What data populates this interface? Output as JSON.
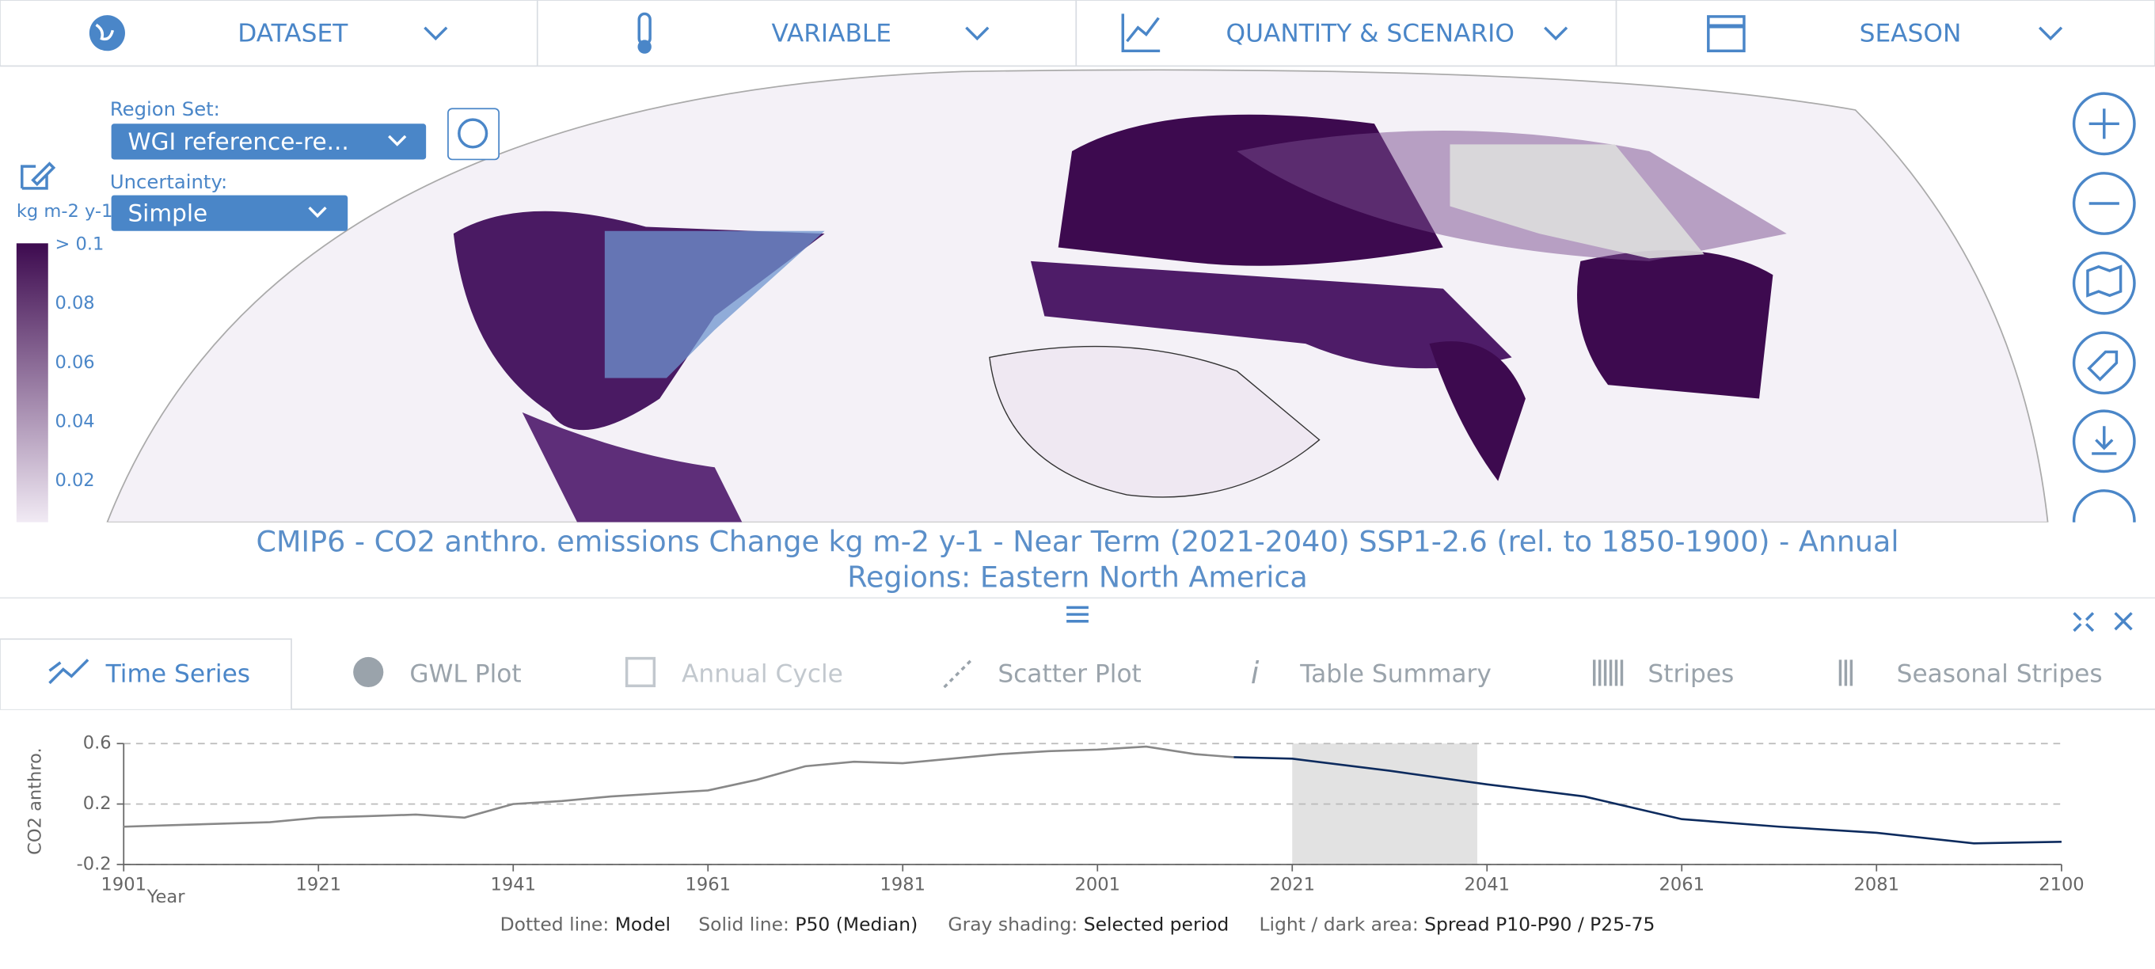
{
  "toolbar": {
    "items": [
      "DATASET",
      "VARIABLE",
      "QUANTITY & SCENARIO",
      "SEASON"
    ]
  },
  "map": {
    "region_set_label": "Region Set:",
    "region_set_value": "WGI reference-re...",
    "uncertainty_label": "Uncertainty:",
    "uncertainty_value": "Simple",
    "unit": "kg m-2 y-1",
    "colorbar_labels": [
      "> 0.1",
      "0.08",
      "0.06",
      "0.04",
      "0.02"
    ]
  },
  "title": {
    "line1": "CMIP6 - CO2 anthro. emissions Change kg m-2 y-1 - Near Term (2021-2040) SSP1-2.6 (rel. to 1850-1900) - Annual",
    "line2": "Regions: Eastern North America"
  },
  "tabs": [
    "Time Series",
    "GWL Plot",
    "Annual Cycle",
    "Scatter Plot",
    "Table Summary",
    "Stripes",
    "Seasonal Stripes"
  ],
  "chart_data": {
    "type": "line",
    "x_label": "Year",
    "y_label": "CO2 anthro.",
    "xlim": [
      1901,
      2100
    ],
    "xticks": [
      1901,
      1921,
      1941,
      1961,
      1981,
      2001,
      2021,
      2041,
      2061,
      2081,
      2100
    ],
    "ylim": [
      -0.2,
      0.6
    ],
    "yticks": [
      -0.2,
      0.2,
      0.6
    ],
    "grid": true,
    "shaded_period": [
      2021,
      2040
    ],
    "series": [
      {
        "color": "#888888",
        "x": [
          1901,
          1906,
          1911,
          1916,
          1921,
          1926,
          1931,
          1936,
          1941,
          1946,
          1951,
          1956,
          1961,
          1966,
          1971,
          1976,
          1981,
          1986,
          1991,
          1996,
          2001,
          2006,
          2011,
          2015
        ],
        "values": [
          0.05,
          0.06,
          0.07,
          0.08,
          0.11,
          0.12,
          0.13,
          0.11,
          0.2,
          0.22,
          0.25,
          0.27,
          0.29,
          0.36,
          0.45,
          0.48,
          0.47,
          0.5,
          0.53,
          0.55,
          0.56,
          0.58,
          0.53,
          0.51
        ]
      },
      {
        "color": "#0d2b5e",
        "x": [
          2015,
          2021,
          2031,
          2041,
          2051,
          2061,
          2071,
          2081,
          2091,
          2100
        ],
        "values": [
          0.51,
          0.5,
          0.42,
          0.33,
          0.25,
          0.1,
          0.05,
          0.01,
          -0.06,
          -0.05
        ]
      }
    ],
    "legend": {
      "k1": "Dotted line:",
      "v1": "Model",
      "k2": "Solid line:",
      "v2": "P50 (Median)",
      "k3": "Gray shading:",
      "v3": "Selected period",
      "k4": "Light / dark area:",
      "v4": "Spread P10-P90 / P25-75"
    }
  }
}
